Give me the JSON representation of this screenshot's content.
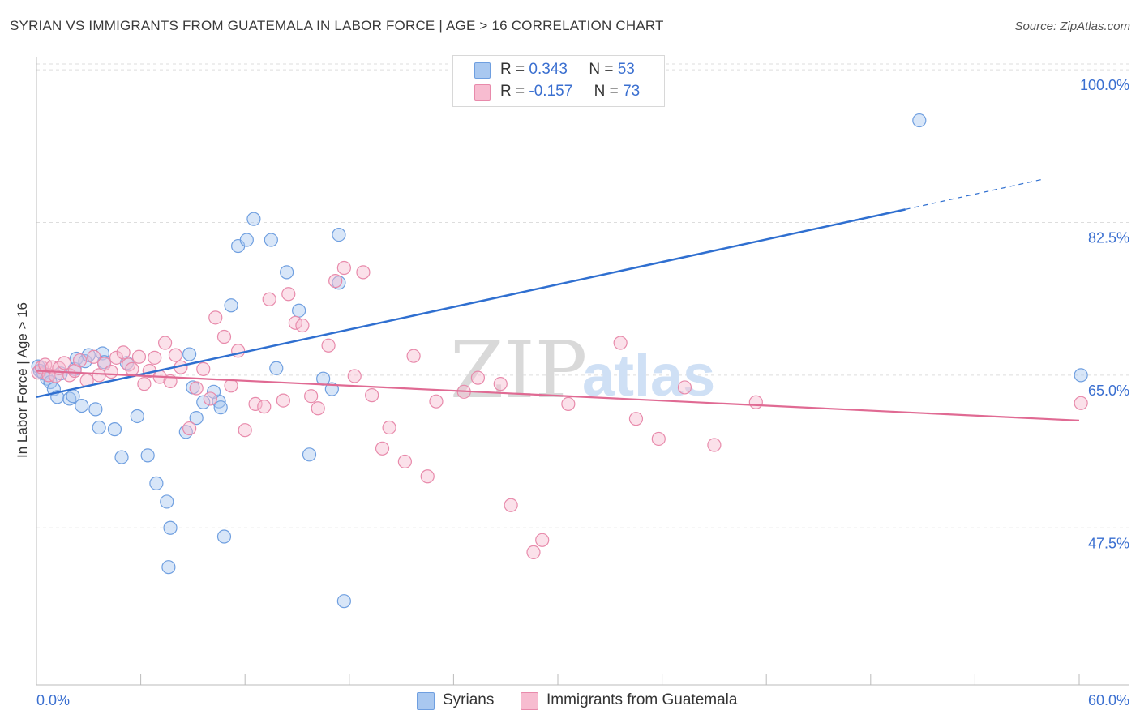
{
  "header": {
    "title": "SYRIAN VS IMMIGRANTS FROM GUATEMALA IN LABOR FORCE | AGE > 16 CORRELATION CHART",
    "source": "Source: ZipAtlas.com"
  },
  "watermark": {
    "zip": "ZIP",
    "atlas": "atlas"
  },
  "legend": {
    "rows": [
      {
        "r_label": "R =",
        "r_value": "0.343",
        "n_label": "N =",
        "n_value": "53"
      },
      {
        "r_label": "R =",
        "r_value": "-0.157",
        "n_label": "N =",
        "n_value": "73"
      }
    ]
  },
  "bottom_legend": {
    "series1": "Syrians",
    "series2": "Immigrants from Guatemala"
  },
  "colors": {
    "blue_fill": "#a9c8f0",
    "blue_stroke": "#6f9fe0",
    "blue_line": "#2f6fd0",
    "pink_fill": "#f7bcd0",
    "pink_stroke": "#e88aab",
    "pink_line": "#e06a93",
    "tick_text": "#3a6fd0",
    "grid": "#dddddd"
  },
  "chart_data": {
    "type": "scatter",
    "title": "SYRIAN VS IMMIGRANTS FROM GUATEMALA IN LABOR FORCE | AGE > 16 CORRELATION CHART",
    "xlabel": "",
    "ylabel": "In Labor Force | Age > 16",
    "xlim": [
      0,
      60
    ],
    "ylim": [
      29.5,
      101.5
    ],
    "x_tick_labels": [
      "0.0%",
      "60.0%"
    ],
    "y_ticks": [
      47.5,
      65.0,
      82.5,
      100.0
    ],
    "y_tick_labels": [
      "47.5%",
      "65.0%",
      "82.5%",
      "100.0%"
    ],
    "grid": true,
    "legend_position": "top-center",
    "series": [
      {
        "name": "Syrians",
        "color": "#6f9fe0",
        "trend": {
          "x": [
            0,
            50
          ],
          "y": [
            62.5,
            84.0
          ],
          "dashed_to": [
            58,
            87.5
          ]
        },
        "points": [
          [
            0.1,
            66.0
          ],
          [
            0.2,
            65.5
          ],
          [
            0.4,
            65.2
          ],
          [
            0.6,
            64.6
          ],
          [
            0.8,
            64.2
          ],
          [
            1.0,
            63.4
          ],
          [
            1.2,
            62.5
          ],
          [
            1.4,
            65.2
          ],
          [
            1.9,
            62.3
          ],
          [
            2.1,
            62.6
          ],
          [
            2.2,
            65.7
          ],
          [
            2.3,
            66.9
          ],
          [
            2.6,
            61.5
          ],
          [
            2.8,
            66.6
          ],
          [
            3.0,
            67.3
          ],
          [
            3.4,
            61.1
          ],
          [
            3.6,
            59.0
          ],
          [
            3.8,
            67.5
          ],
          [
            3.9,
            66.5
          ],
          [
            4.5,
            58.8
          ],
          [
            4.9,
            55.6
          ],
          [
            5.2,
            66.4
          ],
          [
            5.8,
            60.3
          ],
          [
            6.4,
            55.8
          ],
          [
            6.9,
            52.6
          ],
          [
            7.5,
            50.5
          ],
          [
            7.7,
            47.5
          ],
          [
            8.6,
            58.5
          ],
          [
            8.8,
            67.4
          ],
          [
            9.0,
            63.6
          ],
          [
            9.2,
            60.1
          ],
          [
            9.6,
            61.9
          ],
          [
            10.5,
            62.0
          ],
          [
            10.6,
            61.3
          ],
          [
            10.2,
            63.1
          ],
          [
            7.6,
            43.0
          ],
          [
            10.8,
            46.5
          ],
          [
            11.2,
            73.0
          ],
          [
            11.6,
            79.8
          ],
          [
            12.1,
            80.5
          ],
          [
            12.5,
            82.9
          ],
          [
            13.5,
            80.5
          ],
          [
            13.8,
            65.8
          ],
          [
            14.4,
            76.8
          ],
          [
            15.1,
            72.4
          ],
          [
            15.7,
            55.9
          ],
          [
            16.5,
            64.6
          ],
          [
            17.0,
            63.4
          ],
          [
            17.4,
            75.6
          ],
          [
            17.7,
            39.1
          ],
          [
            17.4,
            81.1
          ],
          [
            50.8,
            94.2
          ],
          [
            60.1,
            65.0
          ]
        ]
      },
      {
        "name": "Immigrants from Guatemala",
        "color": "#e88aab",
        "trend": {
          "x": [
            0,
            60
          ],
          "y": [
            65.5,
            59.8
          ]
        },
        "points": [
          [
            0.1,
            65.3
          ],
          [
            0.3,
            65.9
          ],
          [
            0.5,
            66.2
          ],
          [
            0.7,
            65.0
          ],
          [
            0.9,
            65.9
          ],
          [
            1.1,
            64.9
          ],
          [
            1.3,
            65.8
          ],
          [
            1.6,
            66.4
          ],
          [
            1.9,
            65.0
          ],
          [
            2.2,
            65.5
          ],
          [
            2.5,
            66.7
          ],
          [
            2.9,
            64.4
          ],
          [
            3.3,
            67.1
          ],
          [
            3.6,
            65.0
          ],
          [
            3.9,
            66.3
          ],
          [
            4.3,
            65.4
          ],
          [
            4.6,
            67.0
          ],
          [
            5.0,
            67.6
          ],
          [
            5.3,
            66.2
          ],
          [
            5.5,
            65.7
          ],
          [
            5.9,
            67.1
          ],
          [
            6.2,
            64.0
          ],
          [
            6.5,
            65.5
          ],
          [
            6.8,
            67.0
          ],
          [
            7.1,
            64.8
          ],
          [
            7.4,
            68.7
          ],
          [
            7.7,
            64.3
          ],
          [
            8.0,
            67.3
          ],
          [
            8.3,
            65.9
          ],
          [
            8.8,
            58.9
          ],
          [
            9.2,
            63.5
          ],
          [
            9.6,
            65.7
          ],
          [
            10.0,
            62.3
          ],
          [
            10.3,
            71.6
          ],
          [
            10.8,
            69.4
          ],
          [
            11.2,
            63.8
          ],
          [
            11.6,
            67.8
          ],
          [
            12.0,
            58.7
          ],
          [
            12.6,
            61.7
          ],
          [
            13.1,
            61.4
          ],
          [
            13.4,
            73.7
          ],
          [
            14.2,
            62.1
          ],
          [
            14.5,
            74.3
          ],
          [
            14.9,
            71.0
          ],
          [
            15.3,
            70.7
          ],
          [
            15.8,
            62.6
          ],
          [
            16.2,
            61.2
          ],
          [
            16.8,
            68.4
          ],
          [
            17.2,
            75.8
          ],
          [
            17.7,
            77.3
          ],
          [
            18.3,
            64.9
          ],
          [
            18.8,
            76.8
          ],
          [
            19.3,
            62.7
          ],
          [
            19.9,
            56.6
          ],
          [
            20.3,
            59.0
          ],
          [
            21.2,
            55.1
          ],
          [
            21.7,
            67.2
          ],
          [
            22.5,
            53.4
          ],
          [
            23.0,
            62.0
          ],
          [
            24.6,
            63.1
          ],
          [
            25.4,
            64.7
          ],
          [
            26.7,
            64.0
          ],
          [
            27.3,
            50.1
          ],
          [
            28.6,
            44.7
          ],
          [
            29.1,
            46.1
          ],
          [
            30.6,
            61.7
          ],
          [
            33.6,
            68.7
          ],
          [
            34.5,
            60.0
          ],
          [
            35.8,
            57.7
          ],
          [
            37.3,
            63.6
          ],
          [
            39.0,
            57.0
          ],
          [
            41.4,
            61.9
          ],
          [
            60.1,
            61.8
          ]
        ]
      }
    ]
  }
}
